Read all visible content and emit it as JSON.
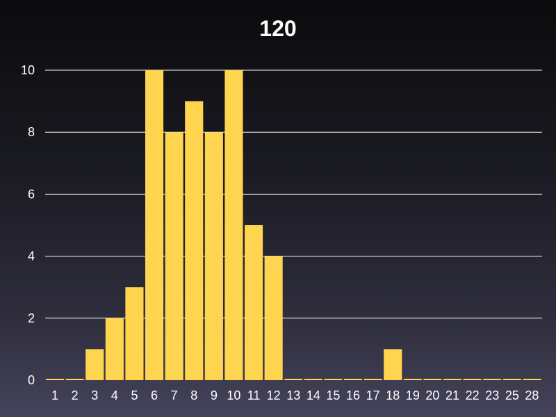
{
  "chart_data": {
    "type": "bar",
    "title": "120",
    "xlabel": "",
    "ylabel": "",
    "categories": [
      "1",
      "2",
      "3",
      "4",
      "5",
      "6",
      "7",
      "8",
      "9",
      "10",
      "11",
      "12",
      "13",
      "14",
      "15",
      "16",
      "17",
      "18",
      "19",
      "20",
      "21",
      "22",
      "23",
      "25",
      "28"
    ],
    "values": [
      0,
      0,
      1,
      2,
      3,
      10,
      8,
      9,
      8,
      10,
      5,
      4,
      0,
      0,
      0,
      0,
      0,
      1,
      0,
      0,
      0,
      0,
      0,
      0,
      0
    ],
    "ylim": [
      0,
      10
    ],
    "yticks": [
      0,
      2,
      4,
      6,
      8,
      10
    ],
    "grid": true,
    "colors": {
      "bar": "#ffd54f",
      "text": "#ffffff",
      "grid": "#ffffff"
    }
  }
}
